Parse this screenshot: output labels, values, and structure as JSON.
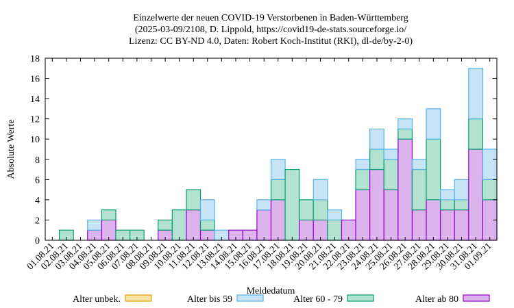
{
  "chart_data": {
    "type": "bar",
    "stacked": true,
    "title_lines": [
      "Einzelwerte der neuen COVID-19 Verstorbenen in Baden-Württemberg",
      "(2025-03-09/2108, D. Lippold, https://covid19-de-stats.sourceforge.io/",
      "Lizenz: CC BY-ND 4.0, Daten: Robert Koch-Institut (RKI), dl-de/by-2-0)"
    ],
    "xlabel": "Meldedatum",
    "ylabel": "Absolute Werte",
    "ylim": [
      0,
      18
    ],
    "yticks": [
      0,
      2,
      4,
      6,
      8,
      10,
      12,
      14,
      16,
      18
    ],
    "grid": false,
    "legend_position": "bottom",
    "categories": [
      "01.08.21",
      "02.08.21",
      "03.08.21",
      "04.08.21",
      "05.08.21",
      "06.08.21",
      "07.08.21",
      "08.08.21",
      "09.08.21",
      "10.08.21",
      "11.08.21",
      "12.08.21",
      "13.08.21",
      "14.08.21",
      "15.08.21",
      "16.08.21",
      "17.08.21",
      "18.08.21",
      "19.08.21",
      "20.08.21",
      "21.08.21",
      "22.08.21",
      "23.08.21",
      "24.08.21",
      "25.08.21",
      "26.08.21",
      "27.08.21",
      "28.08.21",
      "29.08.21",
      "30.08.21",
      "31.08.21",
      "01.09.21"
    ],
    "series": [
      {
        "name": "Alter ab 80",
        "fill": "#ddb3ee",
        "stroke": "#9400d3",
        "values": [
          0,
          0,
          0,
          1,
          2,
          0,
          0,
          0,
          1,
          0,
          3,
          1,
          0,
          1,
          1,
          3,
          4,
          0,
          2,
          2,
          0,
          2,
          5,
          7,
          5,
          10,
          3,
          4,
          3,
          3,
          9,
          4
        ]
      },
      {
        "name": "Alter 60 - 79",
        "fill": "#b3e3d0",
        "stroke": "#009e73",
        "values": [
          0,
          1,
          0,
          0,
          1,
          1,
          1,
          0,
          1,
          3,
          2,
          1,
          0,
          0,
          0,
          0,
          2,
          7,
          2,
          2,
          2,
          0,
          2,
          2,
          3,
          1,
          4,
          6,
          1,
          1,
          3,
          2
        ]
      },
      {
        "name": "Alter bis 59",
        "fill": "#c6e4f5",
        "stroke": "#56b4e9",
        "values": [
          0,
          0,
          0,
          1,
          0,
          0,
          0,
          0,
          0,
          0,
          0,
          2,
          1,
          0,
          0,
          1,
          2,
          0,
          0,
          2,
          1,
          0,
          1,
          2,
          1,
          1,
          1,
          3,
          1,
          2,
          5,
          3
        ]
      },
      {
        "name": "Alter unbek.",
        "fill": "#fbe4a8",
        "stroke": "#e69f00",
        "values": [
          0,
          0,
          0,
          0,
          0,
          0,
          0,
          0,
          0,
          0,
          0,
          0,
          0,
          0,
          0,
          0,
          0,
          0,
          0,
          0,
          0,
          0,
          0,
          0,
          0,
          0,
          0,
          0,
          0,
          0,
          0,
          0
        ]
      }
    ],
    "legend_order": [
      "Alter unbek.",
      "Alter bis 59",
      "Alter 60 - 79",
      "Alter ab 80"
    ]
  }
}
